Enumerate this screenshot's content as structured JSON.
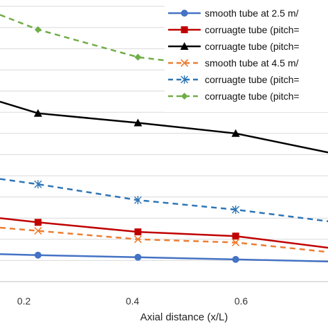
{
  "chart_data": {
    "type": "line",
    "xlabel": "Axial distance (x/L)",
    "ylabel": "",
    "xlim": [
      0.156,
      0.76
    ],
    "ylim": [
      0,
      13.3
    ],
    "xticks": [
      "0.2",
      "0.4",
      "0.6"
    ],
    "xtick_values": [
      0.2,
      0.4,
      0.6
    ],
    "grid": "horizontal",
    "legend_position": "top-right",
    "series": [
      {
        "name": "smooth tube at 2.5 m/",
        "color": "#4472c4",
        "dashed": false,
        "marker": "circle",
        "x": [
          0.156,
          0.226,
          0.41,
          0.59,
          0.76
        ],
        "y": [
          1.3,
          1.25,
          1.15,
          1.05,
          0.95
        ]
      },
      {
        "name": "corruagte tube (pitch=",
        "color": "#c00000",
        "dashed": false,
        "marker": "square",
        "x": [
          0.156,
          0.226,
          0.41,
          0.59,
          0.76
        ],
        "y": [
          3.0,
          2.8,
          2.35,
          2.15,
          1.6
        ]
      },
      {
        "name": "corruagte tube (pitch=",
        "color": "#000000",
        "dashed": false,
        "marker": "triangle",
        "x": [
          0.156,
          0.226,
          0.41,
          0.59,
          0.76
        ],
        "y": [
          8.5,
          7.95,
          7.5,
          7.0,
          6.1
        ]
      },
      {
        "name": "smooth tube at 4.5 m/",
        "color": "#ed7d31",
        "dashed": true,
        "marker": "x",
        "x": [
          0.156,
          0.226,
          0.41,
          0.59,
          0.76
        ],
        "y": [
          2.55,
          2.4,
          2.0,
          1.85,
          1.4
        ]
      },
      {
        "name": "corruagte tube (pitch=",
        "color": "#2e75b6",
        "dashed": true,
        "marker": "asterisk",
        "x": [
          0.156,
          0.226,
          0.41,
          0.59,
          0.76
        ],
        "y": [
          4.85,
          4.6,
          3.85,
          3.4,
          2.85
        ]
      },
      {
        "name": "corruagte tube (pitch=",
        "color": "#70ad47",
        "dashed": true,
        "marker": "diamond",
        "x": [
          0.156,
          0.226,
          0.41,
          0.59,
          0.76
        ],
        "y": [
          12.6,
          11.9,
          10.6,
          10.05,
          9.65
        ]
      }
    ]
  }
}
